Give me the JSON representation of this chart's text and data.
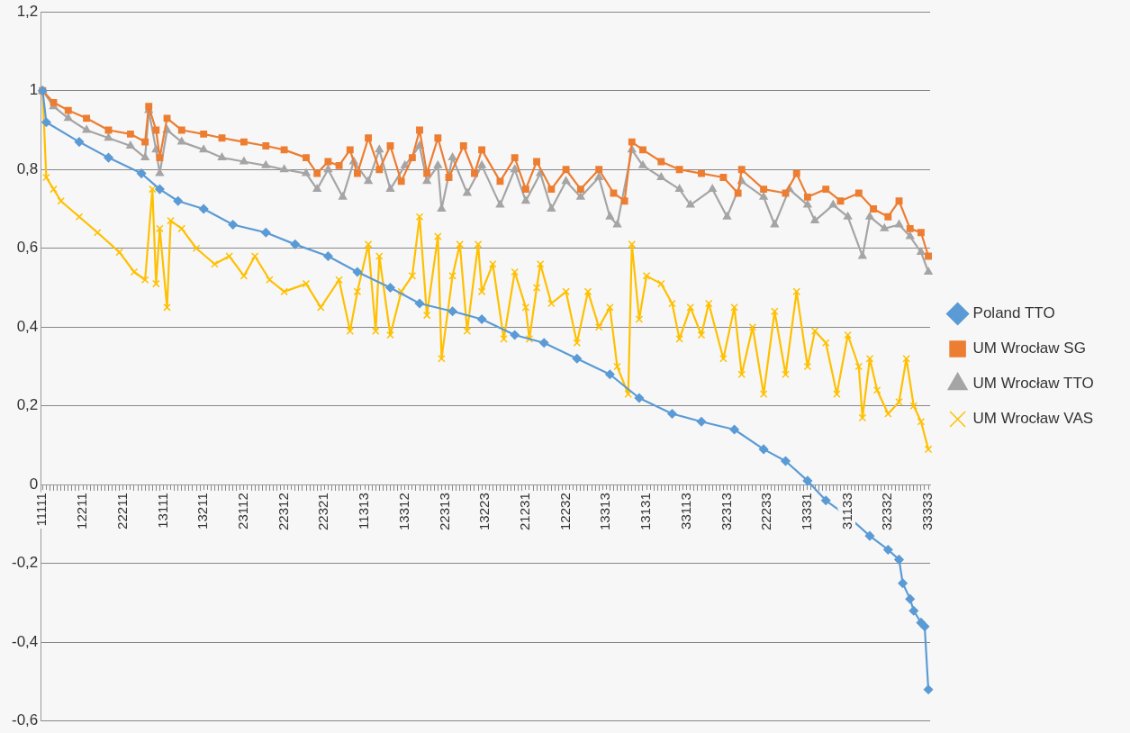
{
  "chart_data": {
    "type": "line",
    "legend": "right",
    "grid": "y",
    "ylim": [
      -0.6,
      1.2
    ],
    "categories": [
      "11111",
      null,
      null,
      null,
      null,
      null,
      null,
      null,
      null,
      null,
      null,
      "12211",
      null,
      null,
      null,
      null,
      null,
      null,
      null,
      null,
      null,
      null,
      "22211",
      null,
      null,
      null,
      null,
      null,
      null,
      null,
      null,
      null,
      null,
      "13111",
      null,
      null,
      null,
      null,
      null,
      null,
      null,
      null,
      null,
      null,
      "13211",
      null,
      null,
      null,
      null,
      null,
      null,
      null,
      null,
      null,
      null,
      "23112",
      null,
      null,
      null,
      null,
      null,
      null,
      null,
      null,
      null,
      null,
      "22312",
      null,
      null,
      null,
      null,
      null,
      null,
      null,
      null,
      null,
      null,
      "22321",
      null,
      null,
      null,
      null,
      null,
      null,
      null,
      null,
      null,
      null,
      "11313",
      null,
      null,
      null,
      null,
      null,
      null,
      null,
      null,
      null,
      null,
      "13312",
      null,
      null,
      null,
      null,
      null,
      null,
      null,
      null,
      null,
      null,
      "22313",
      null,
      null,
      null,
      null,
      null,
      null,
      null,
      null,
      null,
      null,
      "13223",
      null,
      null,
      null,
      null,
      null,
      null,
      null,
      null,
      null,
      null,
      "21231",
      null,
      null,
      null,
      null,
      null,
      null,
      null,
      null,
      null,
      null,
      "12232",
      null,
      null,
      null,
      null,
      null,
      null,
      null,
      null,
      null,
      null,
      "13313",
      null,
      null,
      null,
      null,
      null,
      null,
      null,
      null,
      null,
      null,
      "13131",
      null,
      null,
      null,
      null,
      null,
      null,
      null,
      null,
      null,
      null,
      "33113",
      null,
      null,
      null,
      null,
      null,
      null,
      null,
      null,
      null,
      null,
      "32313",
      null,
      null,
      null,
      null,
      null,
      null,
      null,
      null,
      null,
      null,
      "22233",
      null,
      null,
      null,
      null,
      null,
      null,
      null,
      null,
      null,
      null,
      "13331",
      null,
      null,
      null,
      null,
      null,
      null,
      null,
      null,
      null,
      null,
      "31133",
      null,
      null,
      null,
      null,
      null,
      null,
      null,
      null,
      null,
      null,
      "32332",
      null,
      null,
      null,
      null,
      null,
      null,
      null,
      null,
      null,
      null,
      "33333"
    ],
    "yticks": [
      {
        "value": -0.6,
        "label": "-0,6"
      },
      {
        "value": -0.4,
        "label": "-0,4"
      },
      {
        "value": -0.2,
        "label": "-0,2"
      },
      0,
      {
        "value": 0.2,
        "label": "0,2"
      },
      {
        "value": 0.4,
        "label": "0,4"
      },
      {
        "value": 0.6,
        "label": "0,6"
      },
      {
        "value": 0.8,
        "label": "0,8"
      },
      1,
      {
        "value": 1.2,
        "label": "1,2"
      }
    ],
    "series": [
      {
        "name": "Poland TTO",
        "color": "#5b9bd5",
        "marker": "diamond",
        "values": [
          1.0,
          0.92,
          null,
          null,
          null,
          null,
          null,
          null,
          null,
          null,
          0.87,
          null,
          null,
          null,
          null,
          null,
          null,
          null,
          0.83,
          null,
          null,
          null,
          null,
          null,
          null,
          null,
          null,
          0.79,
          null,
          null,
          null,
          null,
          0.75,
          null,
          null,
          null,
          null,
          0.72,
          null,
          null,
          null,
          null,
          null,
          null,
          0.7,
          null,
          null,
          null,
          null,
          null,
          null,
          null,
          0.66,
          null,
          null,
          null,
          null,
          null,
          null,
          null,
          null,
          0.64,
          null,
          null,
          null,
          null,
          null,
          null,
          null,
          0.61,
          null,
          null,
          null,
          null,
          null,
          null,
          null,
          null,
          0.58,
          null,
          null,
          null,
          null,
          null,
          null,
          null,
          0.54,
          null,
          null,
          null,
          null,
          null,
          null,
          null,
          null,
          0.5,
          null,
          null,
          null,
          null,
          null,
          null,
          null,
          0.46,
          null,
          null,
          null,
          null,
          null,
          null,
          null,
          null,
          0.44,
          null,
          null,
          null,
          null,
          null,
          null,
          null,
          0.42,
          null,
          null,
          null,
          null,
          null,
          null,
          null,
          null,
          0.38,
          null,
          null,
          null,
          null,
          null,
          null,
          null,
          0.36,
          null,
          null,
          null,
          null,
          null,
          null,
          null,
          null,
          0.32,
          null,
          null,
          null,
          null,
          null,
          null,
          null,
          null,
          0.28,
          null,
          null,
          null,
          null,
          null,
          null,
          null,
          0.22,
          null,
          null,
          null,
          null,
          null,
          null,
          null,
          null,
          0.18,
          null,
          null,
          null,
          null,
          null,
          null,
          null,
          0.16,
          null,
          null,
          null,
          null,
          null,
          null,
          null,
          null,
          0.14,
          null,
          null,
          null,
          null,
          null,
          null,
          null,
          0.09,
          null,
          null,
          null,
          null,
          null,
          0.06,
          null,
          null,
          null,
          null,
          null,
          0.01,
          null,
          null,
          null,
          null,
          -0.04,
          null,
          null,
          null,
          null,
          null,
          -0.08,
          null,
          null,
          null,
          null,
          null,
          -0.13,
          null,
          null,
          null,
          null,
          -0.165,
          null,
          null,
          -0.19,
          -0.25,
          null,
          -0.29,
          -0.32,
          null,
          -0.35,
          -0.36,
          -0.52
        ]
      },
      {
        "name": "UM Wrocław SG",
        "color": "#ed7d31",
        "marker": "square",
        "values": [
          1.0,
          null,
          null,
          0.97,
          null,
          null,
          null,
          0.95,
          null,
          null,
          null,
          null,
          0.93,
          null,
          null,
          null,
          null,
          null,
          0.9,
          null,
          null,
          null,
          null,
          null,
          0.89,
          null,
          null,
          null,
          0.87,
          0.96,
          null,
          0.9,
          0.83,
          null,
          0.93,
          null,
          null,
          null,
          0.9,
          null,
          null,
          null,
          null,
          null,
          0.89,
          null,
          null,
          null,
          null,
          0.88,
          null,
          null,
          null,
          null,
          null,
          0.87,
          null,
          null,
          null,
          null,
          null,
          0.86,
          null,
          null,
          null,
          null,
          0.85,
          null,
          null,
          null,
          null,
          null,
          0.83,
          null,
          null,
          0.79,
          null,
          null,
          0.82,
          null,
          null,
          0.81,
          null,
          null,
          0.85,
          null,
          0.79,
          null,
          null,
          0.88,
          null,
          null,
          0.8,
          null,
          null,
          0.86,
          null,
          null,
          0.77,
          null,
          null,
          0.83,
          null,
          0.9,
          null,
          0.79,
          null,
          null,
          0.88,
          null,
          null,
          0.78,
          null,
          null,
          null,
          0.86,
          null,
          null,
          0.79,
          null,
          0.85,
          null,
          null,
          null,
          null,
          0.77,
          null,
          null,
          null,
          0.83,
          null,
          null,
          0.75,
          null,
          null,
          0.82,
          null,
          null,
          null,
          0.75,
          null,
          null,
          null,
          0.8,
          null,
          null,
          null,
          0.75,
          null,
          null,
          null,
          null,
          0.8,
          null,
          null,
          null,
          0.74,
          null,
          null,
          0.72,
          null,
          0.87,
          null,
          null,
          0.85,
          null,
          null,
          null,
          null,
          0.82,
          null,
          null,
          null,
          null,
          0.8,
          null,
          null,
          null,
          null,
          null,
          0.79,
          null,
          null,
          null,
          null,
          null,
          0.78,
          null,
          null,
          null,
          0.74,
          0.8,
          null,
          null,
          null,
          null,
          null,
          0.75,
          null,
          null,
          null,
          null,
          null,
          0.74,
          null,
          null,
          0.79,
          null,
          null,
          0.73,
          null,
          null,
          null,
          null,
          0.75,
          null,
          null,
          null,
          0.72,
          null,
          null,
          null,
          null,
          0.74,
          null,
          null,
          null,
          0.7,
          null,
          null,
          null,
          0.68,
          null,
          null,
          0.72,
          null,
          null,
          0.65,
          null,
          null,
          0.64,
          null,
          0.58
        ]
      },
      {
        "name": "UM Wrocław TTO",
        "color": "#a5a5a5",
        "marker": "triangle",
        "values": [
          1.0,
          null,
          null,
          0.96,
          null,
          null,
          null,
          0.93,
          null,
          null,
          null,
          null,
          0.9,
          null,
          null,
          null,
          null,
          null,
          0.88,
          null,
          null,
          null,
          null,
          null,
          0.86,
          null,
          null,
          null,
          0.83,
          0.95,
          null,
          0.85,
          0.79,
          null,
          0.9,
          null,
          null,
          null,
          0.87,
          null,
          null,
          null,
          null,
          null,
          0.85,
          null,
          null,
          null,
          null,
          0.83,
          null,
          null,
          null,
          null,
          null,
          0.82,
          null,
          null,
          null,
          null,
          null,
          0.81,
          null,
          null,
          null,
          null,
          0.8,
          null,
          null,
          null,
          null,
          null,
          0.79,
          null,
          null,
          0.75,
          null,
          null,
          0.8,
          null,
          null,
          null,
          0.73,
          null,
          null,
          0.82,
          null,
          null,
          null,
          0.77,
          null,
          null,
          0.85,
          null,
          null,
          0.75,
          null,
          null,
          null,
          0.81,
          null,
          null,
          null,
          0.86,
          null,
          0.77,
          null,
          null,
          0.81,
          0.7,
          null,
          null,
          0.83,
          null,
          null,
          null,
          0.74,
          null,
          null,
          null,
          0.81,
          null,
          null,
          null,
          null,
          0.71,
          null,
          null,
          null,
          0.8,
          null,
          null,
          0.72,
          null,
          null,
          null,
          0.79,
          null,
          null,
          0.7,
          null,
          null,
          null,
          0.77,
          null,
          null,
          null,
          0.73,
          null,
          null,
          null,
          null,
          0.78,
          null,
          null,
          0.68,
          null,
          0.66,
          null,
          null,
          null,
          0.85,
          null,
          null,
          0.81,
          null,
          null,
          null,
          null,
          0.78,
          null,
          null,
          null,
          null,
          0.75,
          null,
          null,
          0.71,
          null,
          null,
          null,
          null,
          null,
          0.75,
          null,
          null,
          null,
          0.68,
          null,
          null,
          null,
          0.77,
          null,
          null,
          null,
          null,
          null,
          0.73,
          null,
          null,
          0.66,
          null,
          null,
          null,
          0.75,
          null,
          null,
          null,
          null,
          0.71,
          null,
          0.67,
          null,
          null,
          null,
          null,
          0.71,
          null,
          null,
          null,
          0.68,
          null,
          null,
          null,
          0.58,
          null,
          0.68,
          null,
          null,
          null,
          0.65,
          null,
          null,
          null,
          0.66,
          null,
          null,
          0.63,
          null,
          null,
          0.59,
          null,
          0.54
        ]
      },
      {
        "name": "UM Wrocław VAS",
        "color": "#ffc000",
        "marker": "cross",
        "values": [
          1.0,
          0.78,
          null,
          0.75,
          null,
          0.72,
          null,
          null,
          null,
          null,
          0.68,
          null,
          null,
          null,
          null,
          0.64,
          null,
          null,
          null,
          null,
          null,
          0.59,
          null,
          null,
          null,
          0.54,
          null,
          null,
          0.52,
          null,
          0.75,
          0.51,
          0.65,
          null,
          0.45,
          0.67,
          null,
          null,
          0.65,
          null,
          null,
          null,
          0.6,
          null,
          null,
          null,
          null,
          0.56,
          null,
          null,
          null,
          0.58,
          null,
          null,
          null,
          0.53,
          null,
          null,
          0.58,
          null,
          null,
          null,
          0.52,
          null,
          null,
          null,
          0.49,
          null,
          null,
          null,
          null,
          null,
          0.51,
          null,
          null,
          null,
          0.45,
          null,
          null,
          null,
          null,
          0.52,
          null,
          null,
          0.39,
          null,
          0.49,
          null,
          null,
          0.61,
          null,
          0.39,
          0.58,
          null,
          null,
          0.38,
          null,
          null,
          0.49,
          null,
          null,
          0.53,
          null,
          0.68,
          null,
          0.43,
          null,
          null,
          0.63,
          0.32,
          null,
          null,
          0.53,
          null,
          0.61,
          null,
          0.39,
          null,
          null,
          0.61,
          0.49,
          null,
          null,
          0.56,
          null,
          null,
          0.37,
          null,
          null,
          0.54,
          null,
          null,
          0.45,
          0.37,
          null,
          0.5,
          0.56,
          null,
          null,
          0.46,
          null,
          null,
          null,
          0.49,
          null,
          null,
          0.36,
          null,
          null,
          0.49,
          null,
          null,
          0.4,
          null,
          null,
          0.45,
          null,
          0.3,
          null,
          null,
          0.23,
          0.61,
          null,
          0.42,
          null,
          0.53,
          null,
          null,
          null,
          0.51,
          null,
          null,
          0.46,
          null,
          0.37,
          null,
          null,
          0.45,
          null,
          null,
          0.38,
          null,
          0.46,
          null,
          null,
          null,
          0.32,
          null,
          null,
          0.45,
          null,
          0.28,
          null,
          null,
          0.4,
          null,
          null,
          0.23,
          null,
          null,
          0.44,
          null,
          null,
          0.28,
          null,
          null,
          0.49,
          null,
          null,
          0.3,
          null,
          0.39,
          null,
          null,
          0.36,
          null,
          null,
          0.23,
          null,
          null,
          0.38,
          null,
          null,
          0.3,
          0.17,
          null,
          0.32,
          null,
          0.24,
          null,
          null,
          0.18,
          null,
          null,
          0.21,
          null,
          0.32,
          null,
          0.2,
          null,
          0.16,
          null,
          0.09
        ]
      }
    ]
  }
}
